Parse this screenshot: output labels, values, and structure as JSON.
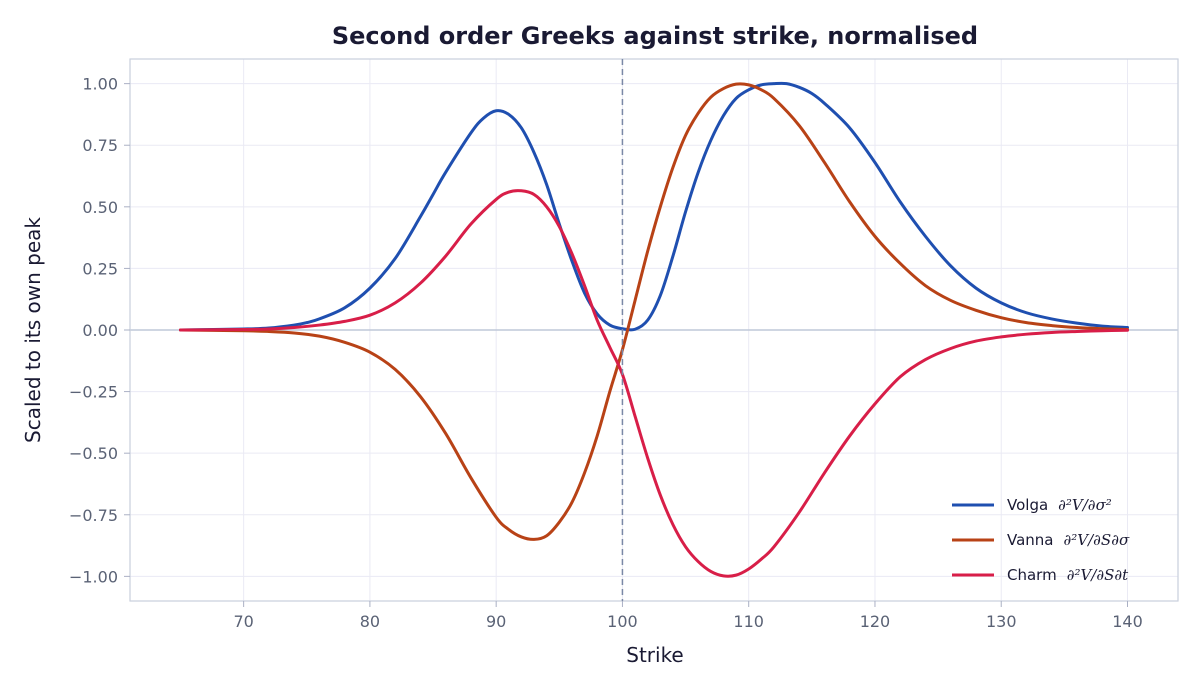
{
  "chart_data": {
    "type": "line",
    "title": "Second order Greeks against strike, normalised",
    "xlabel": "Strike",
    "ylabel": "Scaled to its own peak",
    "xlim": [
      61,
      144
    ],
    "ylim": [
      -1.1,
      1.1
    ],
    "xticks": [
      70,
      80,
      90,
      100,
      110,
      120,
      130,
      140
    ],
    "yticks": [
      1.0,
      0.75,
      0.5,
      0.25,
      0.0,
      -0.25,
      -0.5,
      -0.75,
      -1.0
    ],
    "ytick_labels": [
      "1.00",
      "0.75",
      "0.50",
      "0.25",
      "0.00",
      "−0.25",
      "−0.50",
      "−0.75",
      "−1.00"
    ],
    "grid": true,
    "reference_line_x": 100,
    "legend_position": "bottom-right",
    "series": [
      {
        "name": "Volga",
        "math": "∂²V/∂σ²",
        "color": "#1f4fb0",
        "x": [
          65,
          70,
          72,
          74,
          75,
          76,
          78,
          80,
          82,
          84,
          85,
          86,
          88,
          89,
          90,
          91,
          92,
          93,
          94,
          95,
          96,
          97,
          98,
          99,
          100,
          101,
          102,
          103,
          104,
          105,
          106,
          107,
          108,
          109,
          110,
          111,
          112,
          113,
          114,
          115,
          116,
          118,
          120,
          122,
          124,
          126,
          128,
          130,
          132,
          134,
          136,
          138,
          140
        ],
        "y": [
          0.0,
          0.004,
          0.008,
          0.02,
          0.03,
          0.045,
          0.09,
          0.17,
          0.29,
          0.46,
          0.55,
          0.64,
          0.8,
          0.86,
          0.89,
          0.875,
          0.82,
          0.72,
          0.59,
          0.43,
          0.28,
          0.15,
          0.065,
          0.02,
          0.005,
          0.003,
          0.04,
          0.14,
          0.3,
          0.48,
          0.64,
          0.77,
          0.87,
          0.94,
          0.975,
          0.995,
          1.0,
          1.0,
          0.985,
          0.96,
          0.92,
          0.82,
          0.68,
          0.52,
          0.38,
          0.26,
          0.17,
          0.11,
          0.07,
          0.045,
          0.028,
          0.016,
          0.01
        ]
      },
      {
        "name": "Vanna",
        "math": "∂²V/∂S∂σ",
        "color": "#b84216",
        "x": [
          65,
          70,
          72,
          74,
          76,
          78,
          80,
          82,
          84,
          86,
          88,
          90,
          91,
          92,
          93,
          94,
          95,
          96,
          97,
          98,
          99,
          100,
          101,
          102,
          103,
          104,
          105,
          106,
          107,
          108,
          109,
          110,
          111,
          112,
          114,
          116,
          118,
          120,
          122,
          124,
          126,
          128,
          130,
          132,
          134,
          136,
          138,
          140
        ],
        "y": [
          0.0,
          -0.003,
          -0.006,
          -0.012,
          -0.025,
          -0.05,
          -0.09,
          -0.16,
          -0.27,
          -0.42,
          -0.6,
          -0.76,
          -0.81,
          -0.84,
          -0.85,
          -0.835,
          -0.78,
          -0.7,
          -0.58,
          -0.43,
          -0.25,
          -0.08,
          0.12,
          0.32,
          0.5,
          0.66,
          0.79,
          0.88,
          0.945,
          0.98,
          0.998,
          0.995,
          0.975,
          0.94,
          0.83,
          0.68,
          0.52,
          0.38,
          0.27,
          0.18,
          0.12,
          0.08,
          0.05,
          0.03,
          0.018,
          0.01,
          0.005,
          0.002
        ]
      },
      {
        "name": "Charm",
        "math": "∂²V/∂S∂t",
        "color": "#d81e48",
        "x": [
          65,
          70,
          72,
          74,
          76,
          78,
          80,
          82,
          84,
          86,
          88,
          90,
          91,
          92,
          93,
          94,
          95,
          96,
          97,
          98,
          99,
          100,
          101,
          102,
          103,
          104,
          105,
          106,
          107,
          108,
          109,
          110,
          111,
          112,
          114,
          116,
          118,
          120,
          122,
          124,
          126,
          128,
          130,
          132,
          134,
          136,
          138,
          140
        ],
        "y": [
          0.0,
          0.002,
          0.004,
          0.01,
          0.02,
          0.035,
          0.06,
          0.11,
          0.19,
          0.3,
          0.43,
          0.53,
          0.56,
          0.565,
          0.55,
          0.5,
          0.42,
          0.31,
          0.18,
          0.04,
          -0.07,
          -0.18,
          -0.35,
          -0.52,
          -0.67,
          -0.79,
          -0.88,
          -0.94,
          -0.98,
          -0.998,
          -0.995,
          -0.97,
          -0.93,
          -0.88,
          -0.74,
          -0.58,
          -0.43,
          -0.3,
          -0.19,
          -0.12,
          -0.075,
          -0.045,
          -0.028,
          -0.017,
          -0.01,
          -0.006,
          -0.003,
          -0.001
        ]
      }
    ]
  }
}
